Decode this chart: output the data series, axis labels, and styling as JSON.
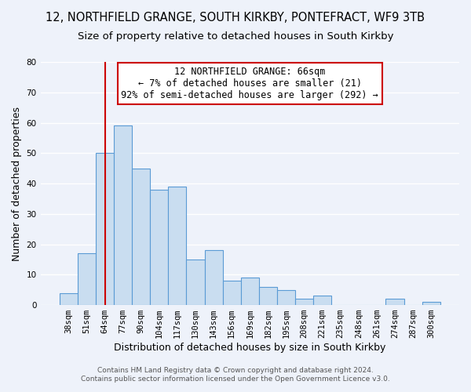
{
  "title": "12, NORTHFIELD GRANGE, SOUTH KIRKBY, PONTEFRACT, WF9 3TB",
  "subtitle": "Size of property relative to detached houses in South Kirkby",
  "xlabel": "Distribution of detached houses by size in South Kirkby",
  "ylabel": "Number of detached properties",
  "categories": [
    "38sqm",
    "51sqm",
    "64sqm",
    "77sqm",
    "90sqm",
    "104sqm",
    "117sqm",
    "130sqm",
    "143sqm",
    "156sqm",
    "169sqm",
    "182sqm",
    "195sqm",
    "208sqm",
    "221sqm",
    "235sqm",
    "248sqm",
    "261sqm",
    "274sqm",
    "287sqm",
    "300sqm"
  ],
  "values": [
    4,
    17,
    50,
    59,
    45,
    38,
    39,
    15,
    18,
    8,
    9,
    6,
    5,
    2,
    3,
    0,
    0,
    0,
    2,
    0,
    1
  ],
  "bar_color": "#c9ddf0",
  "bar_edge_color": "#5b9bd5",
  "vline_x": 2,
  "vline_color": "#cc0000",
  "ylim": [
    0,
    80
  ],
  "yticks": [
    0,
    10,
    20,
    30,
    40,
    50,
    60,
    70,
    80
  ],
  "annotation_title": "12 NORTHFIELD GRANGE: 66sqm",
  "annotation_line1": "← 7% of detached houses are smaller (21)",
  "annotation_line2": "92% of semi-detached houses are larger (292) →",
  "annotation_box_color": "#ffffff",
  "annotation_box_edge": "#cc0000",
  "footer1": "Contains HM Land Registry data © Crown copyright and database right 2024.",
  "footer2": "Contains public sector information licensed under the Open Government Licence v3.0.",
  "background_color": "#eef2fa",
  "grid_color": "#ffffff",
  "title_fontsize": 10.5,
  "subtitle_fontsize": 9.5,
  "axis_label_fontsize": 9,
  "tick_fontsize": 7.5,
  "footer_fontsize": 6.5,
  "annotation_fontsize": 8.5
}
